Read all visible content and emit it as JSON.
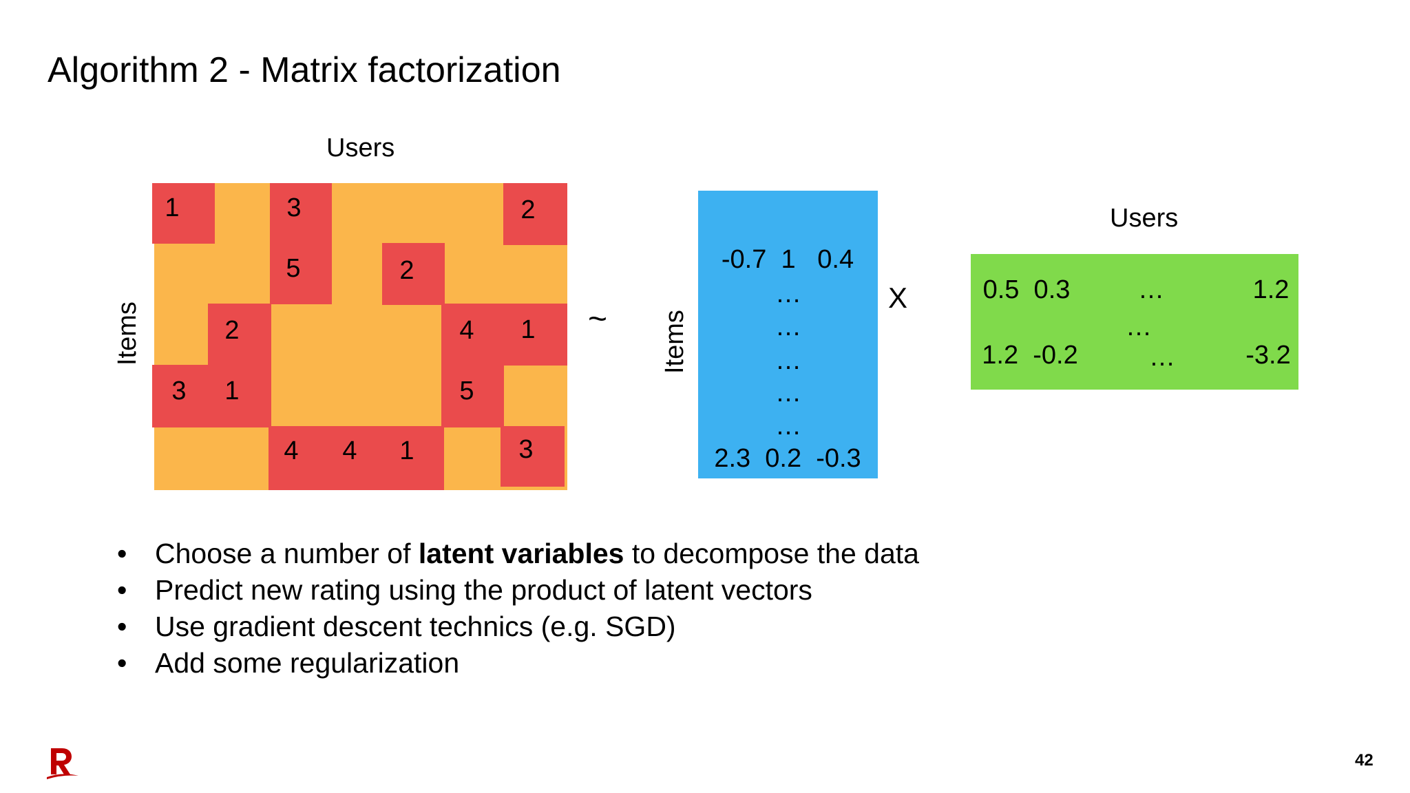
{
  "slide": {
    "title": "Algorithm 2 - Matrix factorization",
    "page_number": "42"
  },
  "colors": {
    "rating_matrix_bg": "#fbb64b",
    "rated_cell": "#ea4b4c",
    "item_matrix_bg": "#3db1f1",
    "user_matrix_bg": "#80da4b",
    "logo": "#bf0000"
  },
  "diagram": {
    "rating_matrix": {
      "top_label": "Users",
      "side_label": "Items",
      "ratings": {
        "r0c0": "1",
        "r0c2": "3",
        "r0c6": "2",
        "r1c2": "5",
        "r1c4": "2",
        "r2c1": "2",
        "r2c5": "4",
        "r2c6": "1",
        "r3c0": "3",
        "r3c1": "1",
        "r3c5": "5",
        "r4c2": "4",
        "r4c3": "4",
        "r4c4": "1",
        "r4c6": "3"
      }
    },
    "approx_symbol": "~",
    "item_matrix": {
      "side_label": "Items",
      "first_row": "-0.7  1   0.4",
      "ellipsis": "…",
      "last_row": "2.3  0.2  -0.3"
    },
    "multiply_symbol": "X",
    "user_matrix": {
      "top_label": "Users",
      "row1_left": "0.5  0.3",
      "row1_mid": "…",
      "row1_right": "1.2",
      "middle": "…",
      "row2_left": "1.2  -0.2",
      "row2_mid": "…",
      "row2_right": "-3.2"
    }
  },
  "bullets": {
    "b1_before": "Choose a number of ",
    "b1_bold": "latent variables",
    "b1_after": " to decompose the data",
    "b2": "Predict new rating using the product of latent vectors",
    "b3": "Use gradient descent technics (e.g. SGD)",
    "b4": "Add some regularization",
    "marker": "•"
  },
  "logo": {
    "icon": "rakuten-r-logo"
  }
}
